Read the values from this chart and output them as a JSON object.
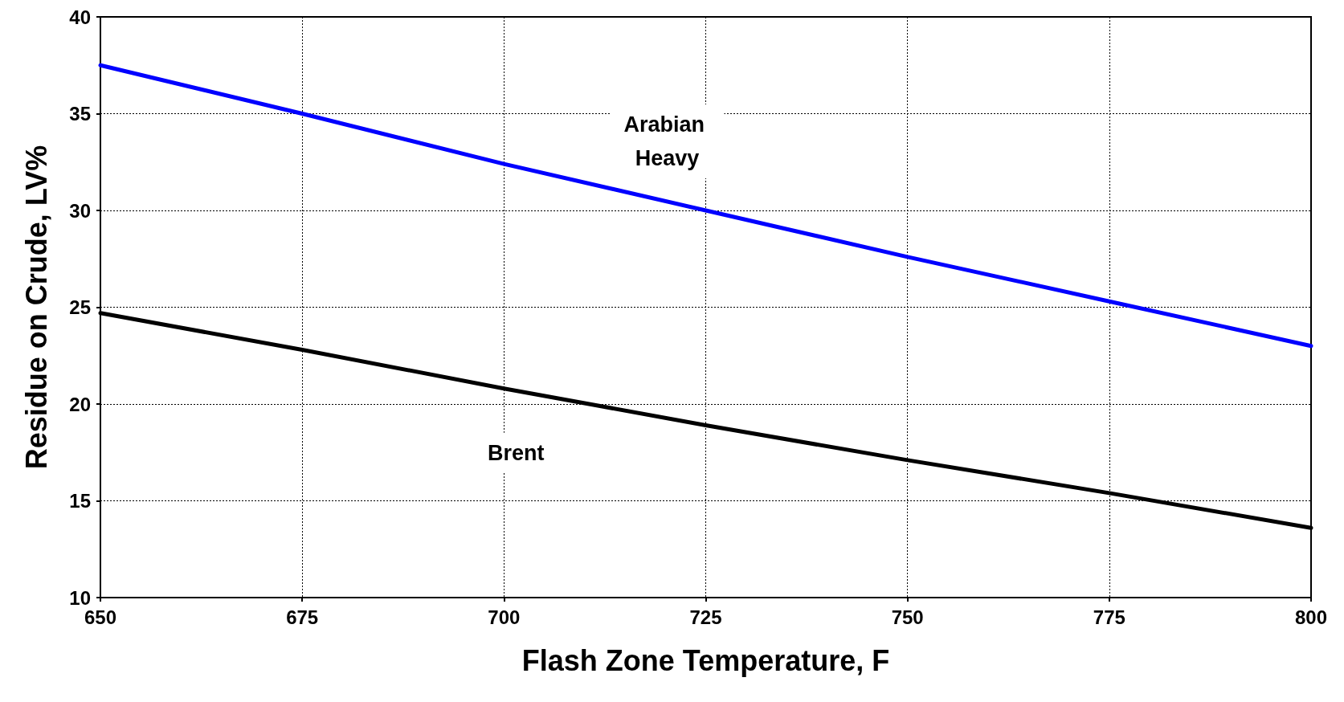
{
  "chart_data": {
    "type": "line",
    "xlabel": "Flash Zone Temperature, F",
    "ylabel": "Residue on Crude, LV%",
    "x": [
      650,
      675,
      700,
      725,
      750,
      775,
      800
    ],
    "series": [
      {
        "name": "Arabian Heavy",
        "color": "#0000ff",
        "values": [
          37.5,
          35,
          32.4,
          30,
          27.6,
          25.3,
          23
        ]
      },
      {
        "name": "Brent",
        "color": "#000000",
        "values": [
          24.7,
          22.8,
          20.8,
          18.9,
          17.1,
          15.4,
          13.6
        ]
      }
    ],
    "xlim": [
      650,
      800
    ],
    "xticks": [
      650,
      675,
      700,
      725,
      750,
      775,
      800
    ],
    "ylim": [
      10,
      40
    ],
    "yticks": [
      10,
      15,
      20,
      25,
      30,
      35,
      40
    ],
    "grid": true,
    "legend": false,
    "marker": "none",
    "line_style": "solid"
  }
}
